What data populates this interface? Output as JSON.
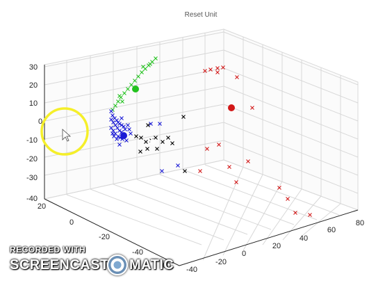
{
  "window": {
    "title": "Reset Unit"
  },
  "axes": {
    "z_ticks": [
      "30",
      "20",
      "10",
      "0",
      "-10",
      "-20",
      "-30",
      "-40"
    ],
    "left_ticks": [
      "20",
      "0",
      "-20",
      "-40",
      "-60"
    ],
    "right_ticks": [
      "-40",
      "-20",
      "0",
      "20",
      "40",
      "60",
      "80"
    ]
  },
  "cursor_highlight": {
    "color": "#f5ef2a"
  },
  "series_colors": {
    "green": "#22c21e",
    "blue": "#1a1ad6",
    "red": "#d21818",
    "black": "#000000"
  },
  "watermark": {
    "line1": "RECORDED WITH",
    "word1": "SCREENCAST",
    "word2": "MATIC"
  }
}
